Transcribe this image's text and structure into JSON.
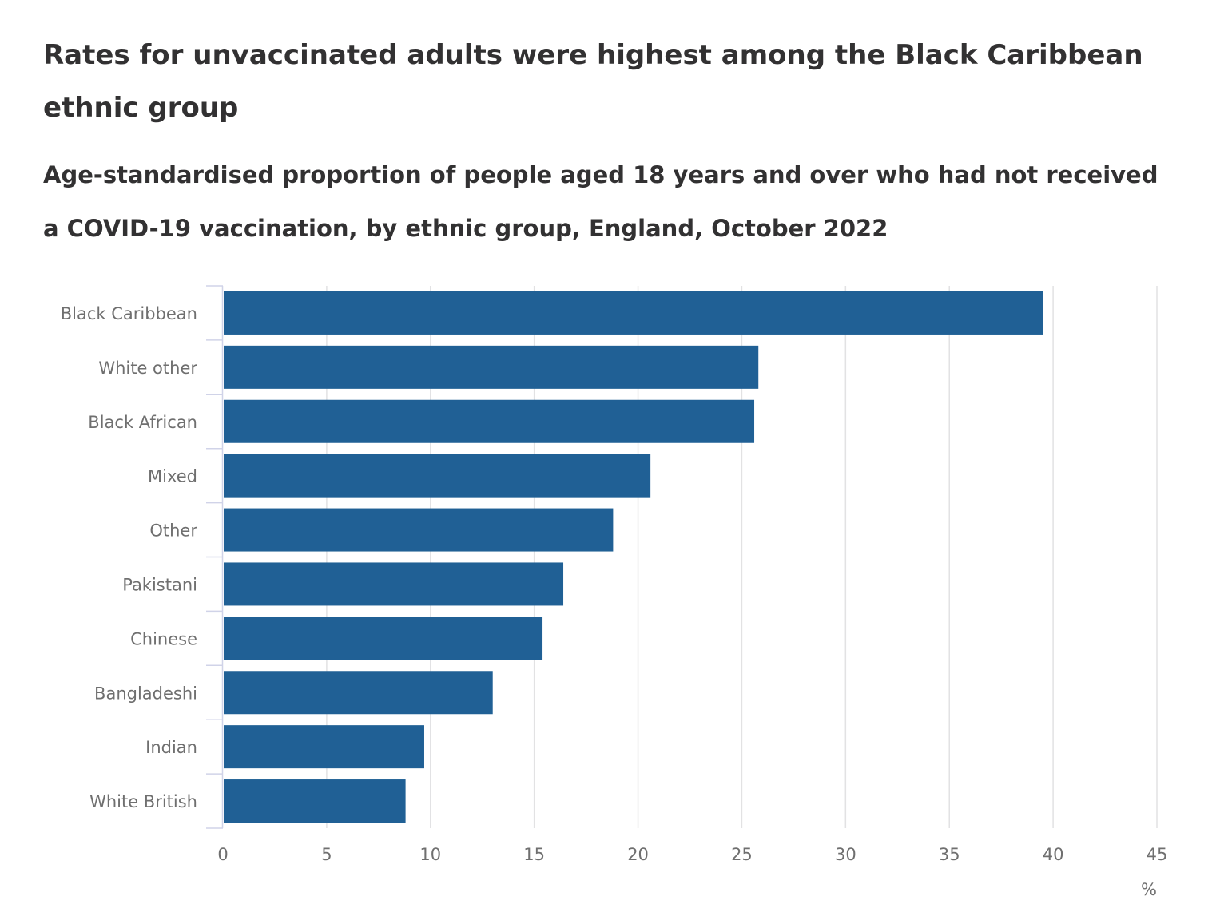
{
  "title": "Rates for unvaccinated adults were highest among the Black Caribbean ethnic group",
  "subtitle": "Age-standardised proportion of people aged 18 years and over who had not received a COVID-19 vaccination, by ethnic group, England, October 2022",
  "chart_data": {
    "type": "bar",
    "orientation": "horizontal",
    "categories": [
      "Black Caribbean",
      "White other",
      "Black African",
      "Mixed",
      "Other",
      "Pakistani",
      "Chinese",
      "Bangladeshi",
      "Indian",
      "White British"
    ],
    "values": [
      39.5,
      25.8,
      25.6,
      20.6,
      18.8,
      16.4,
      15.4,
      13.0,
      9.7,
      8.8
    ],
    "xlim": [
      0,
      45
    ],
    "x_ticks": [
      "0",
      "5",
      "10",
      "15",
      "20",
      "25",
      "30",
      "35",
      "40",
      "45"
    ],
    "unit": "%",
    "grid": true,
    "bar_color": "#206095",
    "grid_color": "#e2e2e3",
    "axis_color": "#d0d3e8"
  }
}
